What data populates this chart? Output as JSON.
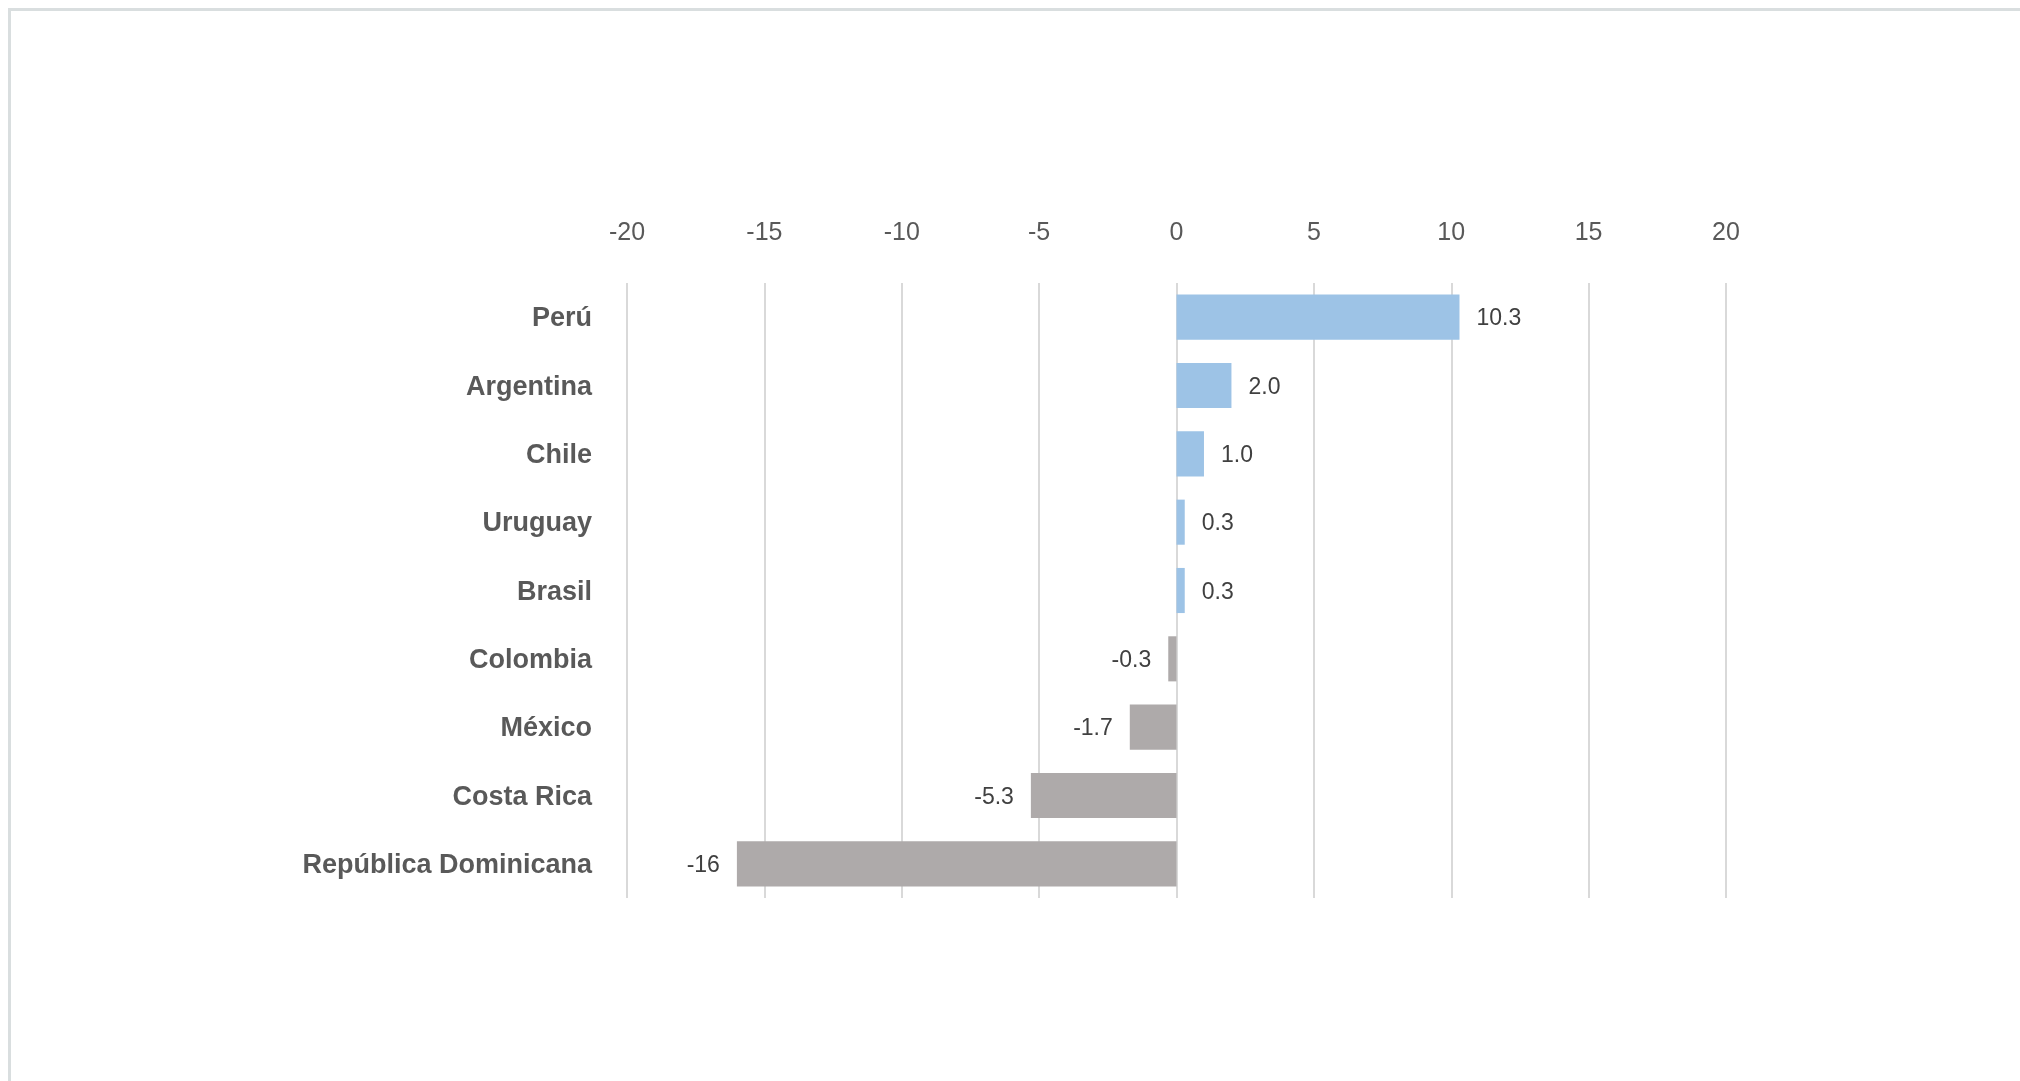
{
  "chart_data": {
    "type": "bar",
    "orientation": "horizontal",
    "categories": [
      "Perú",
      "Argentina",
      "Chile",
      "Uruguay",
      "Brasil",
      "Colombia",
      "México",
      "Costa Rica",
      "República Dominicana"
    ],
    "values": [
      10.3,
      2.0,
      1.0,
      0.3,
      0.3,
      -0.3,
      -1.7,
      -5.3,
      -16
    ],
    "colors": [
      "#9dc3e6",
      "#9dc3e6",
      "#9dc3e6",
      "#9dc3e6",
      "#9dc3e6",
      "#aeaaaa",
      "#aeaaaa",
      "#aeaaaa",
      "#aeaaaa"
    ],
    "value_labels": [
      "10.3",
      "2.0",
      "1.0",
      "0.3",
      "0.3",
      "-0.3",
      "-1.7",
      "-5.3",
      "-16"
    ],
    "xlim": [
      -20,
      20
    ],
    "xticks": [
      -20,
      -15,
      -10,
      -5,
      0,
      5,
      10,
      15,
      20
    ],
    "grid": "x"
  }
}
